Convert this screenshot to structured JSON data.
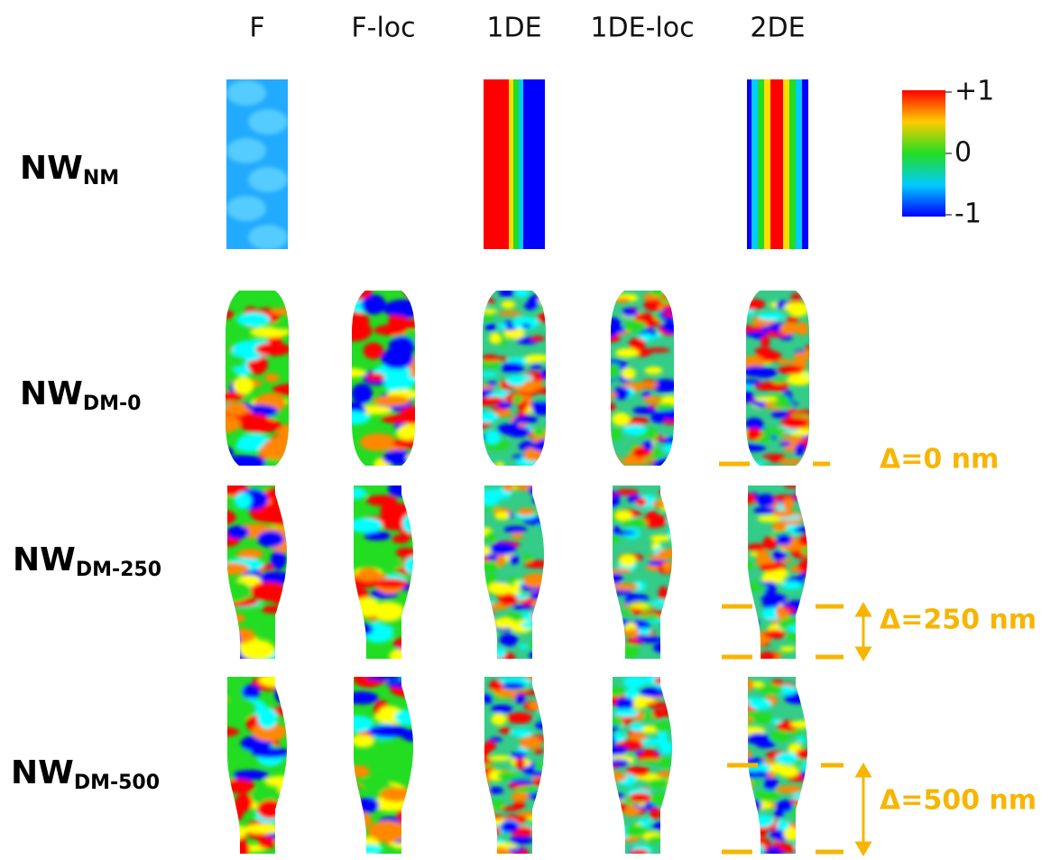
{
  "columns": [
    "F",
    "F-loc",
    "1DE",
    "1DE-loc",
    "2DE"
  ],
  "rows": [
    {
      "label": "NW",
      "subscript": "NM"
    },
    {
      "label": "NW",
      "subscript": "DM-0"
    },
    {
      "label": "NW",
      "subscript": "DM-250"
    },
    {
      "label": "NW",
      "subscript": "DM-500"
    }
  ],
  "colorbar": {
    "ticks": [
      {
        "value": 1,
        "label": "+1"
      },
      0,
      {
        "value": -1,
        "label": "-1"
      }
    ]
  },
  "annotations": [
    "Δ=0 nm",
    "Δ=250 nm",
    "Δ=500 nm"
  ]
}
